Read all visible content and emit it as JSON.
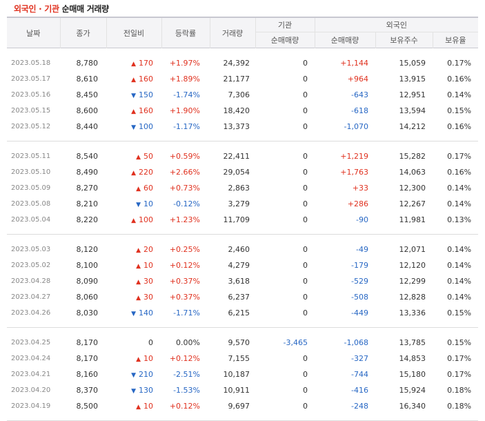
{
  "title": {
    "part_a": "외국인 · 기관",
    "part_b": " 순매매 거래량"
  },
  "headers": {
    "date": "날짜",
    "close": "종가",
    "change": "전일비",
    "rate": "등락률",
    "volume": "거래량",
    "inst_group": "기관",
    "inst_net": "순매매량",
    "foreign_group": "외국인",
    "foreign_net": "순매매량",
    "foreign_hold": "보유주수",
    "foreign_ratio": "보유율"
  },
  "groups": [
    [
      {
        "date": "2023.05.18",
        "close": "8,780",
        "dir": "up",
        "change": "170",
        "rate": "+1.97%",
        "volume": "24,392",
        "inst": "0",
        "fnet": "+1,144",
        "fdir": "up",
        "hold": "15,059",
        "ratio": "0.17%"
      },
      {
        "date": "2023.05.17",
        "close": "8,610",
        "dir": "up",
        "change": "160",
        "rate": "+1.89%",
        "volume": "21,177",
        "inst": "0",
        "fnet": "+964",
        "fdir": "up",
        "hold": "13,915",
        "ratio": "0.16%"
      },
      {
        "date": "2023.05.16",
        "close": "8,450",
        "dir": "dn",
        "change": "150",
        "rate": "-1.74%",
        "volume": "7,306",
        "inst": "0",
        "fnet": "-643",
        "fdir": "dn",
        "hold": "12,951",
        "ratio": "0.14%"
      },
      {
        "date": "2023.05.15",
        "close": "8,600",
        "dir": "up",
        "change": "160",
        "rate": "+1.90%",
        "volume": "18,420",
        "inst": "0",
        "fnet": "-618",
        "fdir": "dn",
        "hold": "13,594",
        "ratio": "0.15%"
      },
      {
        "date": "2023.05.12",
        "close": "8,440",
        "dir": "dn",
        "change": "100",
        "rate": "-1.17%",
        "volume": "13,373",
        "inst": "0",
        "fnet": "-1,070",
        "fdir": "dn",
        "hold": "14,212",
        "ratio": "0.16%"
      }
    ],
    [
      {
        "date": "2023.05.11",
        "close": "8,540",
        "dir": "up",
        "change": "50",
        "rate": "+0.59%",
        "volume": "22,411",
        "inst": "0",
        "fnet": "+1,219",
        "fdir": "up",
        "hold": "15,282",
        "ratio": "0.17%"
      },
      {
        "date": "2023.05.10",
        "close": "8,490",
        "dir": "up",
        "change": "220",
        "rate": "+2.66%",
        "volume": "29,054",
        "inst": "0",
        "fnet": "+1,763",
        "fdir": "up",
        "hold": "14,063",
        "ratio": "0.16%"
      },
      {
        "date": "2023.05.09",
        "close": "8,270",
        "dir": "up",
        "change": "60",
        "rate": "+0.73%",
        "volume": "2,863",
        "inst": "0",
        "fnet": "+33",
        "fdir": "up",
        "hold": "12,300",
        "ratio": "0.14%"
      },
      {
        "date": "2023.05.08",
        "close": "8,210",
        "dir": "dn",
        "change": "10",
        "rate": "-0.12%",
        "volume": "3,279",
        "inst": "0",
        "fnet": "+286",
        "fdir": "up",
        "hold": "12,267",
        "ratio": "0.14%"
      },
      {
        "date": "2023.05.04",
        "close": "8,220",
        "dir": "up",
        "change": "100",
        "rate": "+1.23%",
        "volume": "11,709",
        "inst": "0",
        "fnet": "-90",
        "fdir": "dn",
        "hold": "11,981",
        "ratio": "0.13%"
      }
    ],
    [
      {
        "date": "2023.05.03",
        "close": "8,120",
        "dir": "up",
        "change": "20",
        "rate": "+0.25%",
        "volume": "2,460",
        "inst": "0",
        "fnet": "-49",
        "fdir": "dn",
        "hold": "12,071",
        "ratio": "0.14%"
      },
      {
        "date": "2023.05.02",
        "close": "8,100",
        "dir": "up",
        "change": "10",
        "rate": "+0.12%",
        "volume": "4,279",
        "inst": "0",
        "fnet": "-179",
        "fdir": "dn",
        "hold": "12,120",
        "ratio": "0.14%"
      },
      {
        "date": "2023.04.28",
        "close": "8,090",
        "dir": "up",
        "change": "30",
        "rate": "+0.37%",
        "volume": "3,618",
        "inst": "0",
        "fnet": "-529",
        "fdir": "dn",
        "hold": "12,299",
        "ratio": "0.14%"
      },
      {
        "date": "2023.04.27",
        "close": "8,060",
        "dir": "up",
        "change": "30",
        "rate": "+0.37%",
        "volume": "6,237",
        "inst": "0",
        "fnet": "-508",
        "fdir": "dn",
        "hold": "12,828",
        "ratio": "0.14%"
      },
      {
        "date": "2023.04.26",
        "close": "8,030",
        "dir": "dn",
        "change": "140",
        "rate": "-1.71%",
        "volume": "6,215",
        "inst": "0",
        "fnet": "-449",
        "fdir": "dn",
        "hold": "13,336",
        "ratio": "0.15%"
      }
    ],
    [
      {
        "date": "2023.04.25",
        "close": "8,170",
        "dir": "none",
        "change": "0",
        "rate": "0.00%",
        "volume": "9,570",
        "inst": "-3,465",
        "idir": "dn",
        "fnet": "-1,068",
        "fdir": "dn",
        "hold": "13,785",
        "ratio": "0.15%"
      },
      {
        "date": "2023.04.24",
        "close": "8,170",
        "dir": "up",
        "change": "10",
        "rate": "+0.12%",
        "volume": "7,155",
        "inst": "0",
        "fnet": "-327",
        "fdir": "dn",
        "hold": "14,853",
        "ratio": "0.17%"
      },
      {
        "date": "2023.04.21",
        "close": "8,160",
        "dir": "dn",
        "change": "210",
        "rate": "-2.51%",
        "volume": "10,187",
        "inst": "0",
        "fnet": "-744",
        "fdir": "dn",
        "hold": "15,180",
        "ratio": "0.17%"
      },
      {
        "date": "2023.04.20",
        "close": "8,370",
        "dir": "dn",
        "change": "130",
        "rate": "-1.53%",
        "volume": "10,911",
        "inst": "0",
        "fnet": "-416",
        "fdir": "dn",
        "hold": "15,924",
        "ratio": "0.18%"
      },
      {
        "date": "2023.04.19",
        "close": "8,500",
        "dir": "up",
        "change": "10",
        "rate": "+0.12%",
        "volume": "9,697",
        "inst": "0",
        "fnet": "-248",
        "fdir": "dn",
        "hold": "16,340",
        "ratio": "0.18%"
      }
    ]
  ],
  "icons": {
    "up": "triangle-up-icon",
    "down": "triangle-down-icon"
  },
  "colors": {
    "up": "#e0311f",
    "down": "#2767c4",
    "title_accent": "#e0311f"
  }
}
